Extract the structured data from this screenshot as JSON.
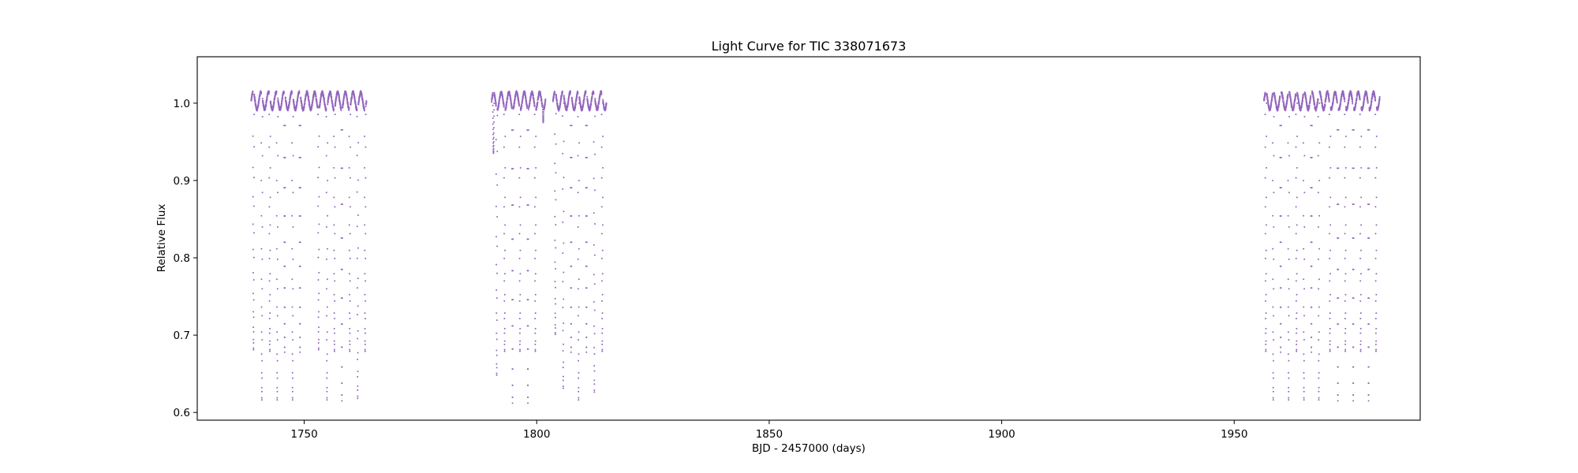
{
  "chart_data": {
    "type": "scatter",
    "title": "Light Curve for TIC 338071673",
    "xlabel": "BJD - 2457000 (days)",
    "ylabel": "Relative Flux",
    "xlim": [
      1727,
      1990
    ],
    "ylim": [
      0.59,
      1.06
    ],
    "xticks": [
      1750,
      1800,
      1850,
      1900,
      1950
    ],
    "yticks": [
      0.6,
      0.7,
      0.8,
      0.9,
      1.0
    ],
    "xtick_labels": [
      "1750",
      "1800",
      "1850",
      "1900",
      "1950"
    ],
    "ytick_labels": [
      "0.6",
      "0.7",
      "0.8",
      "0.9",
      "1.0"
    ],
    "grid": false,
    "legend": "none",
    "marker_color": "#9467bd",
    "segments": [
      {
        "x_range": [
          1738.6,
          1763.4
        ],
        "eclipses": [
          {
            "x": 1739.1,
            "min": 0.68
          },
          {
            "x": 1740.9,
            "min": 0.615
          },
          {
            "x": 1742.6,
            "min": 0.678
          },
          {
            "x": 1744.2,
            "min": 0.615
          },
          {
            "x": 1745.8,
            "min": 0.678
          },
          {
            "x": 1747.5,
            "min": 0.615
          },
          {
            "x": 1749.1,
            "min": 0.678
          },
          {
            "x": 1753.1,
            "min": 0.68
          },
          {
            "x": 1754.9,
            "min": 0.615
          },
          {
            "x": 1756.5,
            "min": 0.678
          },
          {
            "x": 1758.1,
            "min": 0.615
          },
          {
            "x": 1759.8,
            "min": 0.678
          },
          {
            "x": 1761.5,
            "min": 0.617
          },
          {
            "x": 1763.1,
            "min": 0.678
          }
        ]
      },
      {
        "x_range": [
          1790.3,
          1801.9
        ],
        "eclipses": [
          {
            "x": 1790.7,
            "min": 0.935
          },
          {
            "x": 1791.4,
            "min": 0.647
          },
          {
            "x": 1793.1,
            "min": 0.678
          },
          {
            "x": 1794.8,
            "min": 0.612
          },
          {
            "x": 1796.4,
            "min": 0.678
          },
          {
            "x": 1798.1,
            "min": 0.612
          },
          {
            "x": 1799.7,
            "min": 0.678
          },
          {
            "x": 1801.4,
            "min": 0.975
          }
        ]
      },
      {
        "x_range": [
          1803.5,
          1815.0
        ],
        "eclipses": [
          {
            "x": 1804.0,
            "min": 0.7
          },
          {
            "x": 1805.7,
            "min": 0.63
          },
          {
            "x": 1807.4,
            "min": 0.678
          },
          {
            "x": 1809.0,
            "min": 0.615
          },
          {
            "x": 1810.7,
            "min": 0.678
          },
          {
            "x": 1812.4,
            "min": 0.625
          },
          {
            "x": 1814.1,
            "min": 0.678
          }
        ]
      },
      {
        "x_range": [
          1956.4,
          1981.3
        ],
        "eclipses": [
          {
            "x": 1956.8,
            "min": 0.678
          },
          {
            "x": 1958.4,
            "min": 0.615
          },
          {
            "x": 1960.0,
            "min": 0.678
          },
          {
            "x": 1961.7,
            "min": 0.615
          },
          {
            "x": 1963.4,
            "min": 0.678
          },
          {
            "x": 1965.0,
            "min": 0.615
          },
          {
            "x": 1966.6,
            "min": 0.678
          },
          {
            "x": 1968.2,
            "min": 0.615
          },
          {
            "x": 1970.6,
            "min": 0.678
          },
          {
            "x": 1972.3,
            "min": 0.615
          },
          {
            "x": 1973.9,
            "min": 0.678
          },
          {
            "x": 1975.6,
            "min": 0.615
          },
          {
            "x": 1977.2,
            "min": 0.678
          },
          {
            "x": 1978.9,
            "min": 0.615
          },
          {
            "x": 1980.5,
            "min": 0.678
          }
        ]
      }
    ]
  }
}
